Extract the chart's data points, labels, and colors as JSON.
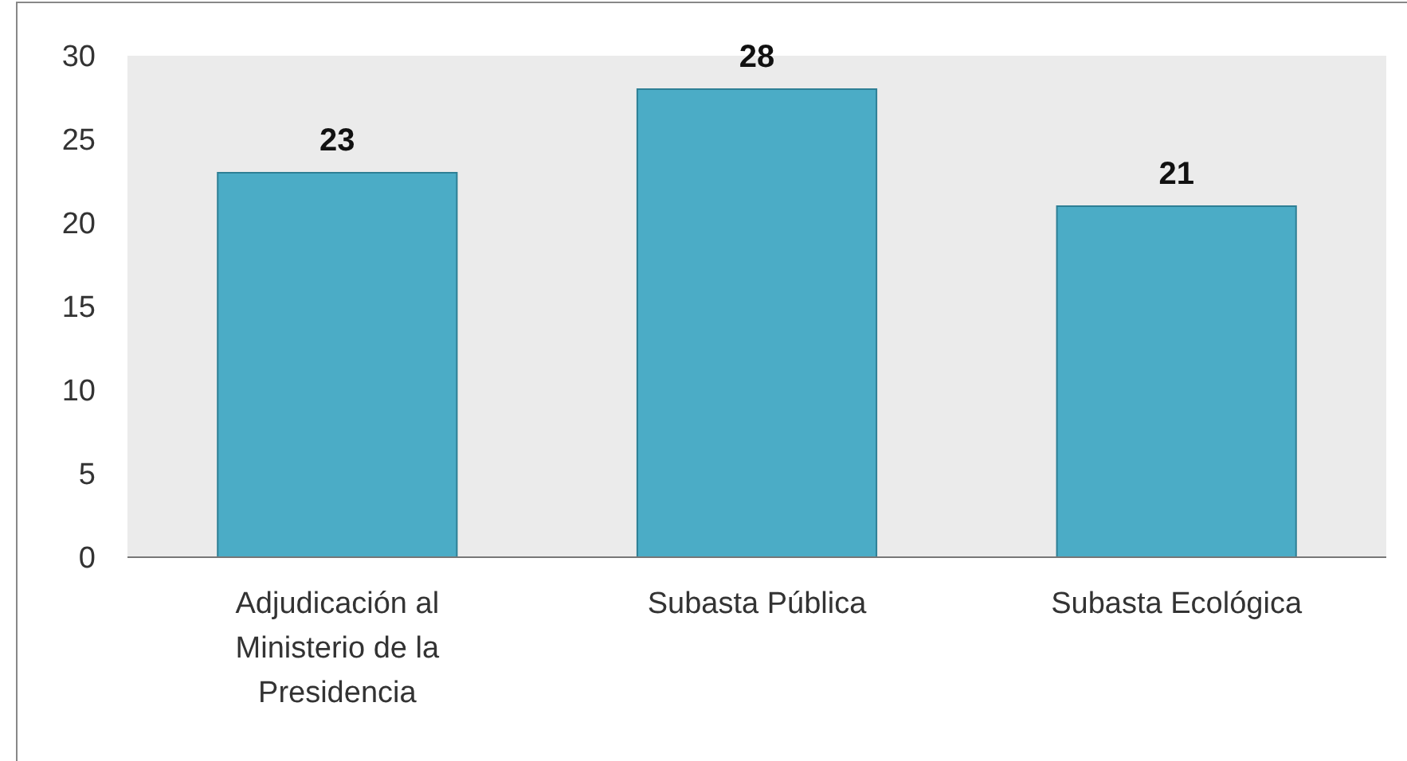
{
  "chart_data": {
    "type": "bar",
    "categories": [
      "Adjudicación al Ministerio de la Presidencia",
      "Subasta Pública",
      "Subasta Ecológica"
    ],
    "values": [
      23,
      28,
      21
    ],
    "color": "#4bacc6",
    "ylim": [
      0,
      30
    ],
    "yticks": [
      0,
      5,
      10,
      15,
      20,
      25,
      30
    ],
    "grid": false,
    "data_labels": true
  }
}
